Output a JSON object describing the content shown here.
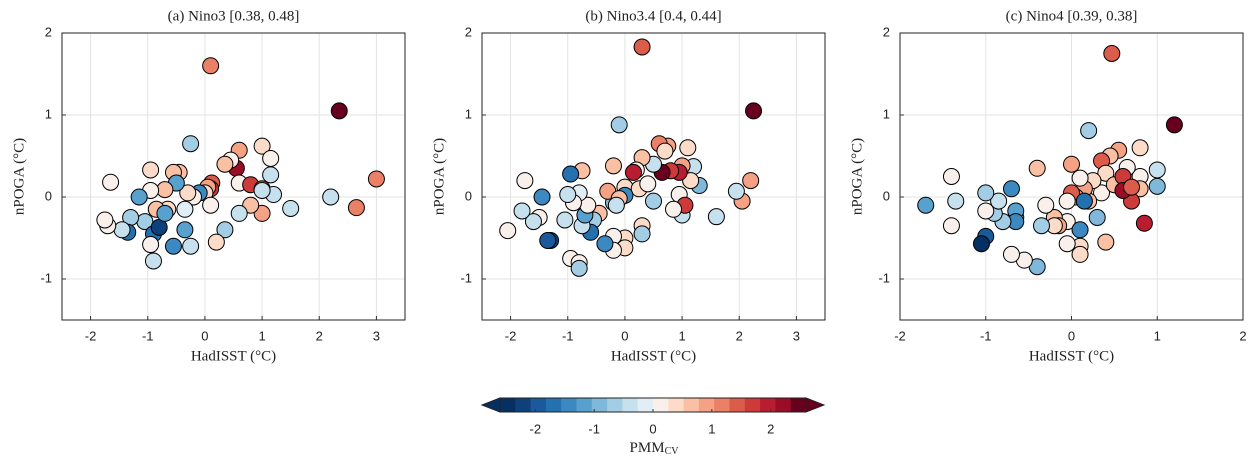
{
  "chart_data": [
    {
      "type": "scatter",
      "title": "(a) Nino3 [0.38, 0.48]",
      "x_label": "HadISST (°C)",
      "y_label": "nPOGA (°C)",
      "xlim": [
        -2.5,
        3.5
      ],
      "xticks": [
        -2,
        -1,
        0,
        1,
        2,
        3
      ],
      "ylim": [
        -1.5,
        2
      ],
      "yticks": [
        -1,
        0,
        1,
        2
      ],
      "grid": true,
      "x": [
        2.35,
        0.1,
        -0.25,
        3.0,
        2.65,
        2.2,
        1.5,
        1.0,
        1.15,
        0.6,
        0.55,
        0.45,
        0.35,
        0.12,
        0.1,
        0.05,
        0.0,
        0.1,
        0.6,
        0.8,
        1.0,
        1.15,
        1.2,
        1.0,
        1.0,
        0.8,
        0.6,
        0.35,
        0.2,
        -0.1,
        -0.2,
        -0.3,
        -0.35,
        -0.35,
        -0.25,
        -0.55,
        -0.45,
        -0.55,
        -0.5,
        -0.7,
        -0.65,
        -0.85,
        -0.95,
        -0.95,
        -1.05,
        -0.9,
        -0.8,
        -0.7,
        -0.95,
        -0.9,
        -1.15,
        -1.3,
        -1.35,
        -1.45,
        -1.65,
        -1.7,
        -1.75
      ],
      "y": [
        1.05,
        1.6,
        0.65,
        0.22,
        -0.13,
        0.0,
        -0.14,
        0.62,
        0.47,
        0.57,
        0.35,
        0.45,
        0.4,
        0.17,
        0.1,
        0.12,
        0.05,
        -0.1,
        0.17,
        0.15,
        0.1,
        0.27,
        0.03,
        0.08,
        -0.2,
        -0.1,
        -0.2,
        -0.4,
        -0.55,
        0.05,
        0.0,
        0.05,
        -0.15,
        -0.4,
        -0.6,
        -0.6,
        0.3,
        0.3,
        0.17,
        0.09,
        -0.15,
        -0.15,
        0.33,
        0.08,
        -0.3,
        -0.45,
        -0.37,
        -0.2,
        -0.58,
        -0.78,
        0.0,
        -0.25,
        -0.43,
        -0.4,
        0.18,
        -0.35,
        -0.28
      ],
      "color_values": [
        2.6,
        1.2,
        -0.6,
        1.1,
        1.1,
        -0.4,
        -0.5,
        0.3,
        0.1,
        1.0,
        2.3,
        0.1,
        0.7,
        1.3,
        1.8,
        0.9,
        0.5,
        0.2,
        0.2,
        1.6,
        1.3,
        -0.5,
        -0.3,
        -0.4,
        0.8,
        0.7,
        -0.4,
        -0.7,
        0.5,
        -1.4,
        0.0,
        0.5,
        -0.2,
        -1.3,
        -0.4,
        -1.4,
        0.6,
        0.7,
        -1.2,
        0.6,
        0.4,
        0.7,
        0.4,
        0.0,
        -0.6,
        -1.6,
        -2.2,
        -1.2,
        0.2,
        -0.5,
        -1.3,
        -0.6,
        -1.7,
        -0.3,
        0.0,
        0.0,
        0.0
      ]
    },
    {
      "type": "scatter",
      "title": "(b) Nino3.4 [0.4, 0.44]",
      "x_label": "HadISST (°C)",
      "y_label": "nPOGA (°C)",
      "xlim": [
        -2.5,
        3.5
      ],
      "xticks": [
        -2,
        -1,
        0,
        1,
        2,
        3
      ],
      "ylim": [
        -1.5,
        2
      ],
      "yticks": [
        -1,
        0,
        1,
        2
      ],
      "grid": true,
      "x": [
        2.25,
        0.3,
        -0.1,
        2.2,
        2.05,
        1.95,
        1.6,
        1.1,
        1.2,
        1.3,
        1.15,
        1.0,
        0.95,
        0.8,
        0.75,
        0.6,
        0.65,
        0.7,
        0.5,
        0.3,
        0.2,
        0.15,
        -0.2,
        0.0,
        0.25,
        0.4,
        0.0,
        -0.2,
        -0.3,
        -0.1,
        -0.15,
        0.95,
        1.0,
        1.05,
        0.85,
        0.5,
        0.3,
        0.3,
        0.0,
        0.0,
        -0.2,
        -0.2,
        -0.35,
        -0.45,
        -0.55,
        -0.6,
        -0.75,
        -0.7,
        -0.65,
        -0.75,
        -0.95,
        -0.8,
        -0.9,
        -1.0,
        -1.05,
        -0.95,
        -0.8,
        -0.8,
        -1.3,
        -1.35,
        -1.5,
        -1.45,
        -1.6,
        -1.75,
        -1.8,
        -2.05
      ],
      "y": [
        1.05,
        1.83,
        0.88,
        0.2,
        -0.05,
        0.07,
        -0.24,
        0.6,
        0.37,
        0.14,
        0.2,
        0.38,
        0.3,
        0.32,
        0.62,
        0.65,
        0.3,
        0.56,
        0.4,
        0.48,
        0.33,
        0.3,
        0.38,
        0.12,
        0.1,
        0.16,
        0.02,
        -0.07,
        0.07,
        -0.02,
        -0.1,
        0.03,
        -0.22,
        -0.1,
        -0.15,
        -0.05,
        -0.35,
        -0.45,
        -0.5,
        -0.62,
        -0.48,
        -0.65,
        -0.57,
        -0.2,
        -0.28,
        -0.43,
        -0.35,
        -0.22,
        -0.1,
        0.32,
        0.28,
        0.05,
        -0.07,
        0.03,
        -0.28,
        -0.75,
        -0.8,
        -0.87,
        -0.53,
        -0.53,
        -0.25,
        0.0,
        -0.3,
        0.2,
        -0.17,
        -0.41
      ],
      "color_values": [
        2.6,
        1.3,
        -0.7,
        0.9,
        0.9,
        -0.3,
        -0.5,
        0.3,
        -0.5,
        -0.8,
        0.4,
        0.8,
        1.9,
        1.6,
        0.9,
        1.2,
        2.4,
        0.3,
        -0.5,
        0.7,
        0.0,
        1.9,
        0.7,
        0.5,
        0.3,
        0.0,
        -1.4,
        -1.0,
        0.8,
        0.6,
        -0.5,
        0.0,
        -0.3,
        1.6,
        0.0,
        -0.6,
        0.5,
        -0.7,
        0.4,
        0.4,
        0.0,
        0.0,
        -1.4,
        0.7,
        -0.6,
        -1.8,
        -0.4,
        -1.2,
        0.0,
        0.6,
        -1.8,
        -0.2,
        0.0,
        -0.5,
        -0.3,
        0.0,
        0.0,
        -0.6,
        -2.3,
        -1.9,
        0.0,
        -1.4,
        -0.5,
        0.0,
        -0.4,
        0.0
      ]
    },
    {
      "type": "scatter",
      "title": "(c) Nino4 [0.39, 0.38]",
      "x_label": "HadISST (°C)",
      "y_label": "nPOGA (°C)",
      "xlim": [
        -2,
        2
      ],
      "xticks": [
        -2,
        -1,
        0,
        1,
        2
      ],
      "ylim": [
        -1.5,
        2
      ],
      "yticks": [
        -1,
        0,
        1,
        2
      ],
      "grid": true,
      "x": [
        1.2,
        0.47,
        0.2,
        1.0,
        1.0,
        0.8,
        0.8,
        0.8,
        0.85,
        0.7,
        0.65,
        0.6,
        0.55,
        0.45,
        0.35,
        0.4,
        0.35,
        0.25,
        0.2,
        0.15,
        0.1,
        0.5,
        0.6,
        0.6,
        0.7,
        0.05,
        0.0,
        0.0,
        -0.05,
        -0.05,
        0.3,
        0.4,
        0.15,
        0.1,
        0.1,
        0.1,
        -0.05,
        -0.2,
        -0.15,
        -0.2,
        -0.3,
        -0.4,
        -0.35,
        -0.4,
        -0.55,
        -0.65,
        -0.65,
        -0.65,
        -0.7,
        -0.8,
        -0.7,
        -0.9,
        -0.85,
        -1.0,
        -1.0,
        -1.0,
        -1.05,
        -1.4,
        -1.4,
        -1.35,
        -1.7
      ],
      "y": [
        0.88,
        1.75,
        0.81,
        0.33,
        0.13,
        0.6,
        0.25,
        0.1,
        -0.32,
        -0.05,
        0.36,
        0.13,
        0.57,
        0.5,
        0.44,
        0.29,
        0.05,
        0.2,
        -0.05,
        0.1,
        0.23,
        0.15,
        0.25,
        0.08,
        0.12,
        0.0,
        0.4,
        0.05,
        -0.05,
        -0.3,
        -0.25,
        -0.55,
        -0.05,
        -0.4,
        -0.6,
        -0.7,
        -0.57,
        -0.25,
        -0.35,
        -0.35,
        -0.1,
        0.35,
        -0.35,
        -0.85,
        -0.77,
        -0.25,
        -0.17,
        -0.3,
        0.1,
        -0.3,
        -0.7,
        -0.2,
        -0.05,
        0.05,
        -0.17,
        -0.48,
        -0.57,
        0.25,
        -0.35,
        -0.05,
        -0.1
      ],
      "color_values": [
        2.6,
        1.3,
        -0.6,
        -0.4,
        -0.8,
        0.3,
        0.2,
        0.7,
        1.9,
        1.6,
        0.0,
        0.2,
        1.0,
        0.6,
        1.3,
        0.4,
        0.0,
        0.5,
        0.6,
        0.9,
        0.0,
        0.6,
        1.7,
        2.2,
        1.5,
        0.8,
        0.9,
        1.3,
        0.0,
        0.0,
        -0.9,
        0.6,
        -1.6,
        -1.4,
        0.5,
        0.3,
        0.0,
        0.7,
        0.8,
        0.3,
        0.1,
        0.6,
        -0.6,
        -1.0,
        0.2,
        0.0,
        -1.3,
        -1.5,
        -1.5,
        -0.6,
        0.0,
        -0.7,
        -0.5,
        -0.7,
        0.0,
        -2.0,
        -2.6,
        0.0,
        0.0,
        -0.5,
        -1.3
      ]
    }
  ],
  "colorbar": {
    "label": "PMM",
    "label_subscript": "CV",
    "clim": [
      -2.6,
      2.6
    ],
    "ticks": [
      -2,
      -1,
      0,
      1,
      2
    ],
    "colors": [
      "#053061",
      "#0e4179",
      "#1b5a9a",
      "#2471b0",
      "#3b89c0",
      "#58a1cf",
      "#7fb8da",
      "#a3cde4",
      "#c6e0ee",
      "#e2eef5",
      "#faf0eb",
      "#fcdcc9",
      "#f9c0a3",
      "#f4a283",
      "#ea8066",
      "#dc5c4c",
      "#cc3a3a",
      "#b81d30",
      "#9b0d27",
      "#67001f"
    ]
  }
}
